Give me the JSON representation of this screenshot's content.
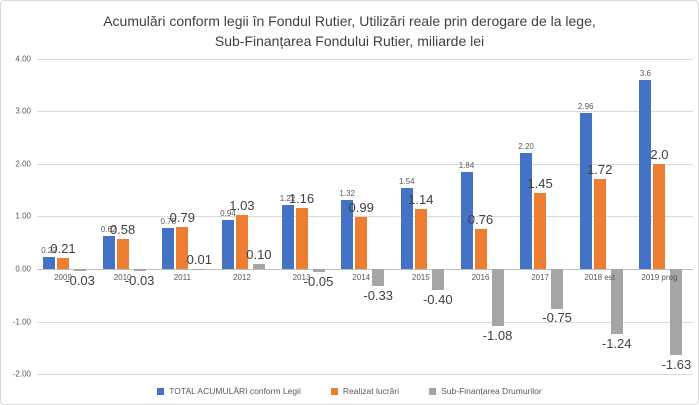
{
  "title": {
    "line1": "Acumulări conform legii în Fondul Rutier, Utilizări reale prin derogare de la lege,",
    "line2": "Sub-Finanțarea Fondului Rutier, miliarde lei"
  },
  "colors": {
    "series_blue": "#4472C4",
    "series_orange": "#ED7D31",
    "series_gray": "#A5A5A5",
    "gridline": "#D9D9D9",
    "axis_text": "#595959",
    "label_text": "#404040"
  },
  "chart_data": {
    "type": "bar",
    "title": "Acumulări conform legii în Fondul Rutier, Utilizări reale prin derogare de la lege, Sub-Finanțarea Fondului Rutier, miliarde lei",
    "categories": [
      "2009",
      "2010",
      "2011",
      "2012",
      "2013",
      "2014",
      "2015",
      "2016",
      "2017",
      "2018 est",
      "2019 prog"
    ],
    "series": [
      {
        "name": "TOTAL ACUMULĂRI conform Legii",
        "color": "#4472C4",
        "values": [
          0.22,
          0.62,
          0.78,
          0.94,
          1.22,
          1.32,
          1.54,
          1.84,
          2.2,
          2.96,
          3.6
        ],
        "labels": [
          "0.22",
          "0.62",
          "0.78",
          "0.94",
          "1.22",
          "1.32",
          "1.54",
          "1.84",
          "2.20",
          "2.96",
          "3.6"
        ],
        "label_style": "small"
      },
      {
        "name": "Realizat lucrări",
        "color": "#ED7D31",
        "values": [
          0.21,
          0.58,
          0.79,
          1.03,
          1.16,
          0.99,
          1.14,
          0.76,
          1.45,
          1.72,
          2.0
        ],
        "labels": [
          "0.21",
          "0.58",
          "0.79",
          "1.03",
          "1.16",
          "0.99",
          "1.14",
          "0.76",
          "1.45",
          "1.72",
          "2.0"
        ],
        "label_style": "big"
      },
      {
        "name": "Sub-Finanțarea Drumurilor",
        "color": "#A5A5A5",
        "values": [
          -0.03,
          -0.03,
          0.01,
          0.1,
          -0.05,
          -0.33,
          -0.4,
          -1.08,
          -0.75,
          -1.24,
          -1.63
        ],
        "labels": [
          "-0.03",
          "-0.03",
          "0.01",
          "0.10",
          "-0.05",
          "-0.33",
          "-0.40",
          "-1.08",
          "-0.75",
          "-1.24",
          "-1.63"
        ],
        "label_style": "big"
      }
    ],
    "y_axis": {
      "min": -2,
      "max": 4,
      "tick_step": 1,
      "tick_labels": [
        "4.00",
        "3.00",
        "2.00",
        "1.00",
        "0.00",
        "-1.00",
        "-2.00"
      ]
    },
    "grid": true,
    "legend_position": "bottom"
  }
}
